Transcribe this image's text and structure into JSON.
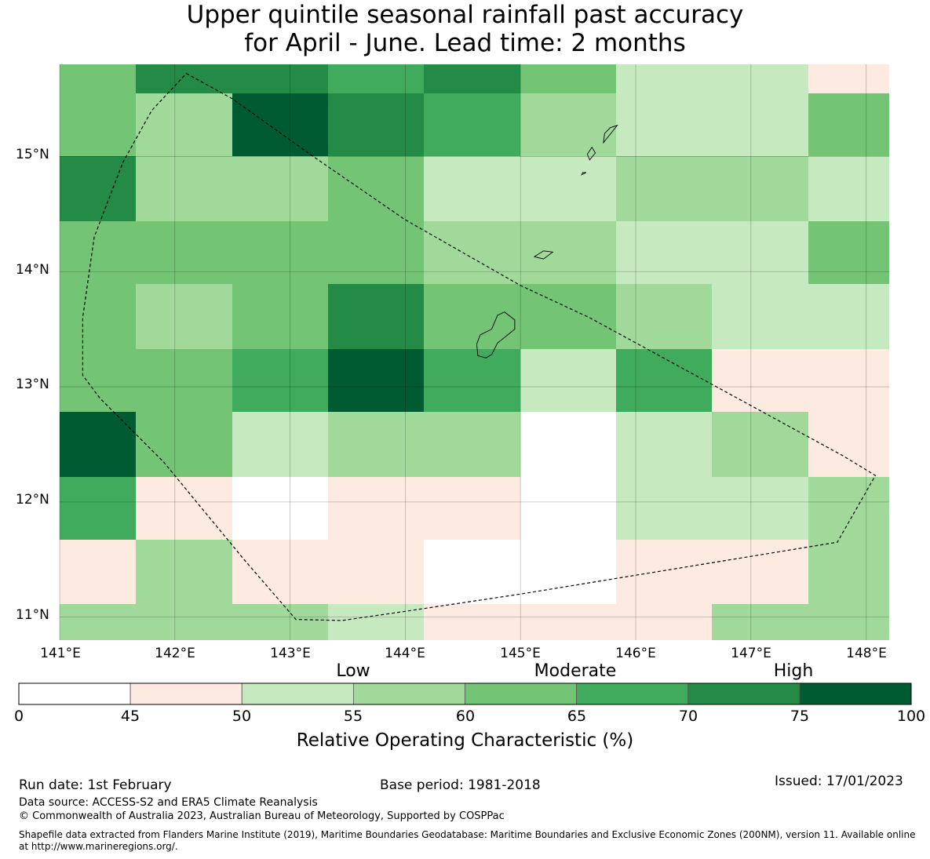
{
  "title_line1": "Upper quintile seasonal rainfall past accuracy",
  "title_line2": "for April - June. Lead time: 2 months",
  "map": {
    "lon_ticks": [
      "141°E",
      "142°E",
      "143°E",
      "144°E",
      "145°E",
      "146°E",
      "147°E",
      "148°E"
    ],
    "lat_ticks": [
      "15°N",
      "14°N",
      "13°N",
      "12°N",
      "11°N"
    ],
    "lon_range": [
      141.0,
      148.2
    ],
    "lat_range": [
      10.8,
      15.8
    ],
    "grid_lon_edges": [
      141.0,
      141.66,
      142.5,
      143.33,
      144.16,
      145.0,
      145.83,
      146.66,
      147.5,
      148.2
    ],
    "grid_lat_edges": [
      15.8,
      15.55,
      15.0,
      14.44,
      13.89,
      13.33,
      12.78,
      12.22,
      11.67,
      11.11,
      10.8
    ],
    "cells_category": [
      [
        4,
        6,
        6,
        5,
        6,
        4,
        2,
        2,
        1
      ],
      [
        4,
        3,
        7,
        6,
        5,
        3,
        2,
        2,
        4
      ],
      [
        6,
        3,
        3,
        4,
        2,
        2,
        3,
        3,
        2
      ],
      [
        4,
        4,
        4,
        4,
        3,
        3,
        2,
        2,
        4
      ],
      [
        4,
        3,
        4,
        6,
        4,
        4,
        3,
        2,
        2
      ],
      [
        4,
        4,
        5,
        7,
        5,
        2,
        5,
        1,
        1
      ],
      [
        7,
        4,
        2,
        3,
        3,
        0,
        2,
        3,
        1
      ],
      [
        5,
        1,
        0,
        1,
        1,
        0,
        2,
        2,
        3
      ],
      [
        1,
        3,
        1,
        1,
        0,
        0,
        1,
        1,
        3
      ],
      [
        3,
        3,
        3,
        2,
        1,
        1,
        1,
        3,
        3
      ]
    ],
    "boundary_lonlat": [
      [
        142.1,
        15.72
      ],
      [
        142.5,
        15.5
      ],
      [
        143.2,
        15.0
      ],
      [
        144.0,
        14.45
      ],
      [
        145.0,
        13.88
      ],
      [
        145.6,
        13.6
      ],
      [
        146.7,
        13.0
      ],
      [
        147.8,
        12.4
      ],
      [
        148.08,
        12.23
      ],
      [
        147.75,
        11.65
      ],
      [
        145.0,
        11.2
      ],
      [
        144.0,
        11.05
      ],
      [
        143.45,
        10.97
      ],
      [
        143.05,
        10.98
      ],
      [
        142.6,
        11.5
      ],
      [
        141.9,
        12.35
      ],
      [
        141.35,
        12.9
      ],
      [
        141.2,
        13.1
      ],
      [
        141.2,
        13.6
      ],
      [
        141.3,
        14.3
      ],
      [
        141.55,
        14.95
      ],
      [
        141.8,
        15.4
      ],
      [
        142.1,
        15.72
      ]
    ],
    "islands": [
      {
        "name": "Guam",
        "points": [
          [
            144.86,
            13.65
          ],
          [
            144.95,
            13.58
          ],
          [
            144.95,
            13.5
          ],
          [
            144.8,
            13.38
          ],
          [
            144.75,
            13.28
          ],
          [
            144.7,
            13.25
          ],
          [
            144.63,
            13.27
          ],
          [
            144.62,
            13.37
          ],
          [
            144.65,
            13.45
          ],
          [
            144.75,
            13.5
          ],
          [
            144.8,
            13.62
          ],
          [
            144.86,
            13.65
          ]
        ]
      },
      {
        "name": "Rota",
        "points": [
          [
            145.12,
            14.13
          ],
          [
            145.2,
            14.18
          ],
          [
            145.28,
            14.17
          ],
          [
            145.2,
            14.11
          ],
          [
            145.12,
            14.13
          ]
        ]
      },
      {
        "name": "Tinian",
        "points": [
          [
            145.6,
            14.97
          ],
          [
            145.65,
            15.03
          ],
          [
            145.62,
            15.08
          ],
          [
            145.58,
            15.02
          ],
          [
            145.6,
            14.97
          ]
        ]
      },
      {
        "name": "Saipan",
        "points": [
          [
            145.72,
            15.12
          ],
          [
            145.8,
            15.22
          ],
          [
            145.84,
            15.27
          ],
          [
            145.78,
            15.25
          ],
          [
            145.73,
            15.2
          ],
          [
            145.72,
            15.12
          ]
        ]
      },
      {
        "name": "Aguijan",
        "points": [
          [
            145.53,
            14.84
          ],
          [
            145.57,
            14.86
          ],
          [
            145.54,
            14.86
          ],
          [
            145.53,
            14.84
          ]
        ]
      }
    ]
  },
  "colorbar": {
    "categories": [
      "Low",
      "Moderate",
      "High"
    ],
    "ticks": [
      "0",
      "45",
      "50",
      "55",
      "60",
      "65",
      "70",
      "75",
      "100"
    ],
    "colors": [
      "#ffffff",
      "#fdeae1",
      "#c7e9c0",
      "#a1d99b",
      "#74c476",
      "#41ab5d",
      "#238b45",
      "#005a32"
    ],
    "label": "Relative Operating Characteristic (%)"
  },
  "footer": {
    "run_date": "Run date: 1st February",
    "base_period": "Base period: 1981-2018",
    "issued": "Issued: 17/01/2023",
    "data_source": "Data source: ACCESS-S2 and ERA5 Climate Reanalysis",
    "copyright": "© Commonwealth of Australia 2023, Australian Bureau of Meteorology, Supported by COSPPac",
    "shapefile": "Shapefile data extracted from Flanders Marine Institute (2019), Maritime Boundaries Geodatabase: Maritime Boundaries and Exclusive Economic Zones (200NM), version 11. Available online at http://www.marineregions.org/."
  }
}
